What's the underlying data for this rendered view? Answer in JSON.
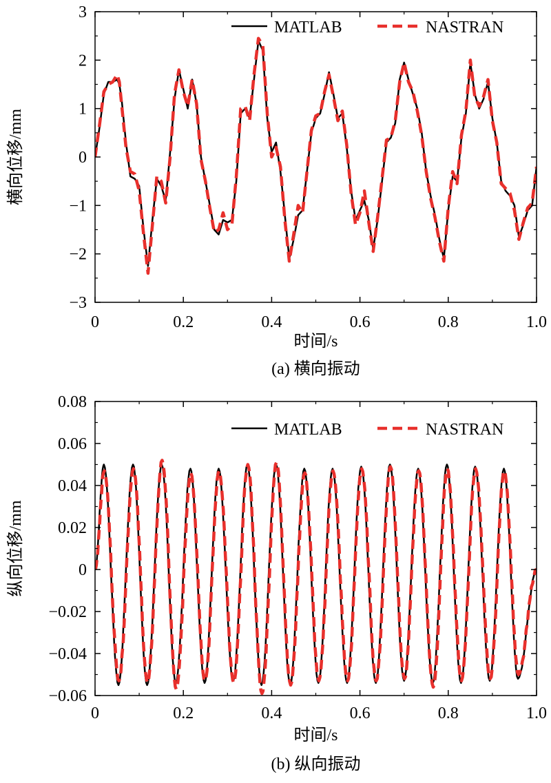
{
  "colors": {
    "matlab": "#000000",
    "nastran": "#e8302c"
  },
  "chart_data": [
    {
      "type": "line",
      "caption": "(a) 横向振动",
      "xlabel": "时间/s",
      "ylabel": "横向位移/mm",
      "xlim": [
        0,
        1.0
      ],
      "ylim": [
        -3,
        3
      ],
      "xticks": [
        0,
        0.2,
        0.4,
        0.6,
        0.8,
        1.0
      ],
      "xtick_labels": [
        "0",
        "0.2",
        "0.4",
        "0.6",
        "0.8",
        "1.0"
      ],
      "yticks": [
        3,
        2,
        1,
        0,
        -1,
        -2,
        -3
      ],
      "ytick_labels": [
        "3",
        "2",
        "1",
        "0",
        "−1",
        "−2",
        "−3"
      ],
      "legend": [
        "MATLAB",
        "NASTRAN"
      ],
      "legend_position": "top-right",
      "series": [
        {
          "name": "MATLAB",
          "style": "solid",
          "x": [
            0,
            0.01,
            0.02,
            0.03,
            0.04,
            0.05,
            0.055,
            0.06,
            0.07,
            0.08,
            0.09,
            0.1,
            0.11,
            0.12,
            0.13,
            0.14,
            0.15,
            0.16,
            0.17,
            0.18,
            0.19,
            0.2,
            0.21,
            0.22,
            0.23,
            0.24,
            0.25,
            0.26,
            0.27,
            0.28,
            0.29,
            0.3,
            0.31,
            0.32,
            0.33,
            0.34,
            0.35,
            0.36,
            0.37,
            0.38,
            0.39,
            0.4,
            0.41,
            0.42,
            0.43,
            0.44,
            0.45,
            0.46,
            0.47,
            0.48,
            0.49,
            0.5,
            0.51,
            0.52,
            0.53,
            0.54,
            0.55,
            0.56,
            0.57,
            0.58,
            0.59,
            0.6,
            0.61,
            0.62,
            0.63,
            0.64,
            0.65,
            0.66,
            0.67,
            0.68,
            0.69,
            0.7,
            0.71,
            0.72,
            0.73,
            0.74,
            0.75,
            0.76,
            0.77,
            0.78,
            0.79,
            0.8,
            0.81,
            0.82,
            0.83,
            0.84,
            0.85,
            0.86,
            0.87,
            0.88,
            0.89,
            0.9,
            0.91,
            0.92,
            0.93,
            0.94,
            0.95,
            0.96,
            0.97,
            0.98,
            0.99,
            1.0
          ],
          "y": [
            0,
            0.6,
            1.3,
            1.55,
            1.55,
            1.6,
            1.5,
            1.2,
            0.3,
            -0.4,
            -0.45,
            -0.6,
            -1.5,
            -2.25,
            -1.3,
            -0.45,
            -0.6,
            -0.9,
            0.1,
            1.2,
            1.8,
            1.4,
            1.0,
            1.6,
            1.1,
            0.0,
            -0.5,
            -1.0,
            -1.5,
            -1.6,
            -1.3,
            -1.35,
            -1.3,
            -0.5,
            0.9,
            1.0,
            0.8,
            1.6,
            2.4,
            2.2,
            0.8,
            0.1,
            0.3,
            -0.3,
            -1.2,
            -2.1,
            -1.7,
            -1.2,
            -1.1,
            -0.3,
            0.5,
            0.8,
            0.9,
            1.3,
            1.75,
            1.3,
            0.8,
            0.9,
            0.2,
            -0.7,
            -1.3,
            -1.1,
            -0.9,
            -1.3,
            -1.9,
            -1.3,
            -0.5,
            0.3,
            0.4,
            0.7,
            1.6,
            1.95,
            1.6,
            1.3,
            1.0,
            0.5,
            -0.3,
            -0.8,
            -1.2,
            -1.7,
            -2.1,
            -1.1,
            -0.4,
            -0.5,
            0.4,
            0.9,
            1.95,
            1.3,
            1.0,
            1.2,
            1.55,
            0.8,
            0.3,
            -0.5,
            -0.7,
            -0.8,
            -1.0,
            -1.65,
            -1.4,
            -1.1,
            -1.0,
            -0.2
          ]
        },
        {
          "name": "NASTRAN",
          "style": "dashed",
          "x": [
            0,
            0.01,
            0.02,
            0.03,
            0.04,
            0.05,
            0.055,
            0.06,
            0.07,
            0.08,
            0.09,
            0.1,
            0.11,
            0.12,
            0.13,
            0.14,
            0.15,
            0.16,
            0.17,
            0.18,
            0.19,
            0.2,
            0.21,
            0.22,
            0.23,
            0.24,
            0.25,
            0.26,
            0.27,
            0.28,
            0.29,
            0.3,
            0.31,
            0.32,
            0.33,
            0.34,
            0.35,
            0.36,
            0.37,
            0.38,
            0.39,
            0.4,
            0.41,
            0.42,
            0.43,
            0.44,
            0.45,
            0.46,
            0.47,
            0.48,
            0.49,
            0.5,
            0.51,
            0.52,
            0.53,
            0.54,
            0.55,
            0.56,
            0.57,
            0.58,
            0.59,
            0.6,
            0.61,
            0.62,
            0.63,
            0.64,
            0.65,
            0.66,
            0.67,
            0.68,
            0.69,
            0.7,
            0.71,
            0.72,
            0.73,
            0.74,
            0.75,
            0.76,
            0.77,
            0.78,
            0.79,
            0.8,
            0.81,
            0.82,
            0.83,
            0.84,
            0.85,
            0.86,
            0.87,
            0.88,
            0.89,
            0.9,
            0.91,
            0.92,
            0.93,
            0.94,
            0.95,
            0.96,
            0.97,
            0.98,
            0.99,
            1.0
          ],
          "y": [
            0,
            0.65,
            1.35,
            1.5,
            1.55,
            1.7,
            1.55,
            1.1,
            0.2,
            -0.3,
            -0.35,
            -0.7,
            -1.6,
            -2.4,
            -1.4,
            -0.4,
            -0.5,
            -0.95,
            0.0,
            1.3,
            1.8,
            1.35,
            1.05,
            1.6,
            1.1,
            -0.05,
            -0.5,
            -1.05,
            -1.55,
            -1.5,
            -1.15,
            -1.5,
            -1.4,
            -0.4,
            1.0,
            1.05,
            0.75,
            1.7,
            2.45,
            2.3,
            0.9,
            0.0,
            0.2,
            -0.2,
            -1.3,
            -2.15,
            -1.6,
            -1.0,
            -1.15,
            -0.3,
            0.55,
            0.85,
            0.9,
            1.35,
            1.7,
            1.25,
            0.75,
            0.95,
            0.25,
            -0.75,
            -1.4,
            -1.15,
            -0.7,
            -1.35,
            -1.95,
            -1.25,
            -0.45,
            0.35,
            0.4,
            0.75,
            1.55,
            1.95,
            1.55,
            1.35,
            0.95,
            0.45,
            -0.3,
            -0.85,
            -1.25,
            -1.75,
            -2.15,
            -1.05,
            -0.3,
            -0.55,
            0.45,
            0.95,
            2.0,
            1.25,
            1.05,
            1.25,
            1.6,
            0.75,
            0.3,
            -0.55,
            -0.65,
            -0.75,
            -1.1,
            -1.7,
            -1.35,
            -1.05,
            -0.95,
            -0.2
          ]
        }
      ]
    },
    {
      "type": "line",
      "caption": "(b) 纵向振动",
      "xlabel": "时间/s",
      "ylabel": "纵向位移/mm",
      "xlim": [
        0,
        1.0
      ],
      "ylim": [
        -0.06,
        0.08
      ],
      "xticks": [
        0,
        0.2,
        0.4,
        0.6,
        0.8,
        1.0
      ],
      "xtick_labels": [
        "0",
        "0.2",
        "0.4",
        "0.6",
        "0.8",
        "1.0"
      ],
      "yticks": [
        0.08,
        0.06,
        0.04,
        0.02,
        0,
        -0.02,
        -0.04,
        -0.06
      ],
      "ytick_labels": [
        "0.08",
        "0.06",
        "0.04",
        "0.02",
        "0",
        "−0.02",
        "−0.04",
        "−0.06"
      ],
      "legend": [
        "MATLAB",
        "NASTRAN"
      ],
      "legend_position": "top-right",
      "oscillation_period_s": 0.0645,
      "series": [
        {
          "name": "MATLAB",
          "style": "solid",
          "peak_times": [
            0.02,
            0.086,
            0.151,
            0.216,
            0.28,
            0.345,
            0.41,
            0.474,
            0.538,
            0.603,
            0.668,
            0.732,
            0.797,
            0.861,
            0.926
          ],
          "peak_values": [
            0.05,
            0.05,
            0.05,
            0.048,
            0.048,
            0.05,
            0.05,
            0.048,
            0.048,
            0.049,
            0.05,
            0.048,
            0.05,
            0.049,
            0.048
          ],
          "trough_times": [
            0.053,
            0.118,
            0.183,
            0.248,
            0.313,
            0.377,
            0.442,
            0.506,
            0.571,
            0.636,
            0.7,
            0.765,
            0.829,
            0.894,
            0.958
          ],
          "trough_values": [
            -0.055,
            -0.055,
            -0.054,
            -0.054,
            -0.053,
            -0.055,
            -0.055,
            -0.054,
            -0.054,
            -0.054,
            -0.053,
            -0.054,
            -0.054,
            -0.053,
            -0.052
          ]
        },
        {
          "name": "NASTRAN",
          "style": "dashed",
          "peak_times": [
            0.021,
            0.087,
            0.152,
            0.217,
            0.281,
            0.346,
            0.411,
            0.475,
            0.539,
            0.604,
            0.669,
            0.733,
            0.798,
            0.862,
            0.927
          ],
          "peak_values": [
            0.047,
            0.048,
            0.052,
            0.046,
            0.047,
            0.05,
            0.051,
            0.046,
            0.047,
            0.048,
            0.049,
            0.047,
            0.048,
            0.048,
            0.047
          ],
          "trough_times": [
            0.054,
            0.119,
            0.184,
            0.249,
            0.314,
            0.378,
            0.443,
            0.507,
            0.572,
            0.637,
            0.701,
            0.766,
            0.83,
            0.895,
            0.959
          ],
          "trough_values": [
            -0.053,
            -0.054,
            -0.057,
            -0.053,
            -0.054,
            -0.059,
            -0.055,
            -0.053,
            -0.053,
            -0.053,
            -0.052,
            -0.056,
            -0.053,
            -0.052,
            -0.05
          ]
        }
      ]
    }
  ]
}
